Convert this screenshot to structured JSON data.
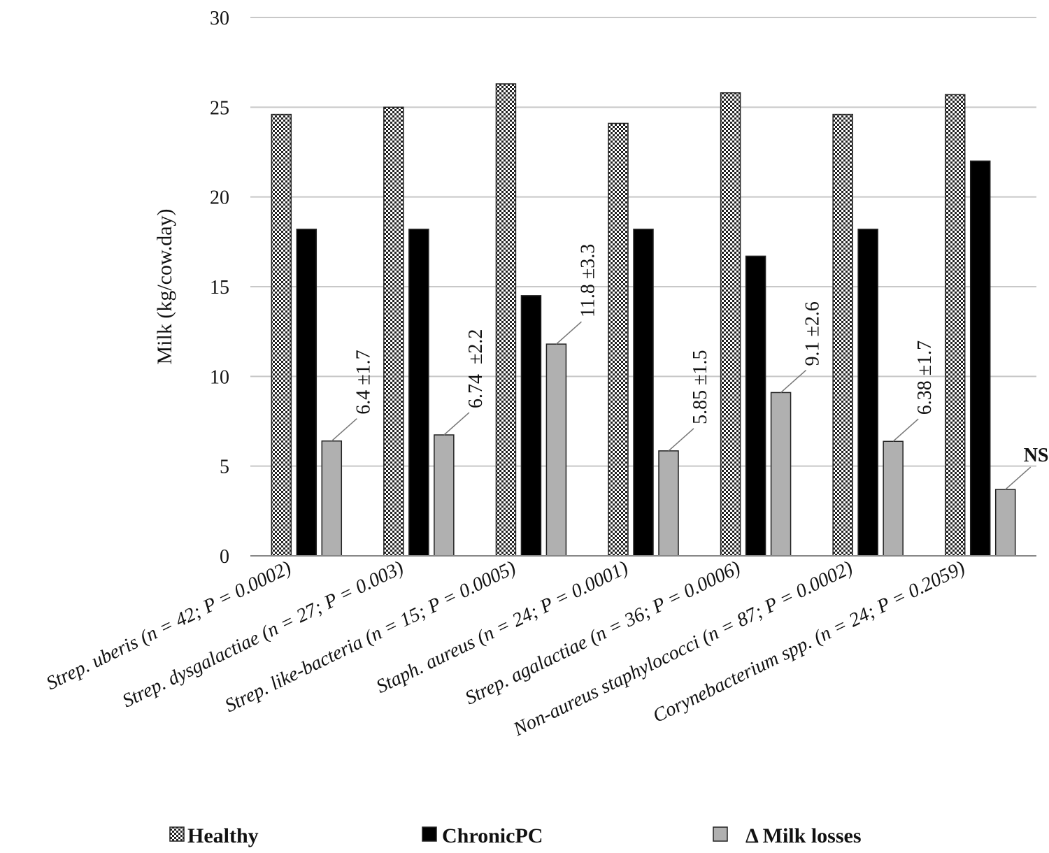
{
  "chart_data": {
    "type": "bar",
    "title": "",
    "xlabel": "",
    "ylabel": "Milk (kg/cow.day)",
    "ylim": [
      0,
      30
    ],
    "yticks": [
      0,
      5,
      10,
      15,
      20,
      25,
      30
    ],
    "grid": true,
    "legend_position": "bottom",
    "categories": [
      "Strep. uberis (n = 42; P = 0.0002)",
      "Strep. dysgalactiae (n = 27; P = 0.003)",
      "Strep. like-bacteria (n = 15; P = 0.0005)",
      "Staph. aureus (n = 24; P = 0.0001)",
      "Strep. agalactiae (n = 36; P = 0.0006)",
      "Non-aureus staphylococci (n = 87; P = 0.0002)",
      "Corynebacterium spp. (n = 24; P = 0.2059)"
    ],
    "series": [
      {
        "name": "Healthy",
        "values": [
          24.6,
          25.0,
          26.3,
          24.1,
          25.8,
          24.6,
          25.7
        ],
        "color": "#ffffff",
        "pattern": "checker"
      },
      {
        "name": "ChronicPC",
        "values": [
          18.2,
          18.2,
          14.5,
          18.2,
          16.7,
          18.2,
          22.0
        ],
        "color": "#000000"
      },
      {
        "name": "Δ Milk losses",
        "values": [
          6.4,
          6.74,
          11.8,
          5.85,
          9.1,
          6.38,
          3.7
        ],
        "color": "#b0b0b0"
      }
    ],
    "annotations": [
      "6.4 ±1.7",
      "6.74  ±2.2",
      "11.8 ±3.3",
      "5.85 ±1.5",
      "9.1 ±2.6",
      "6.38 ±1.7",
      "NS"
    ]
  }
}
